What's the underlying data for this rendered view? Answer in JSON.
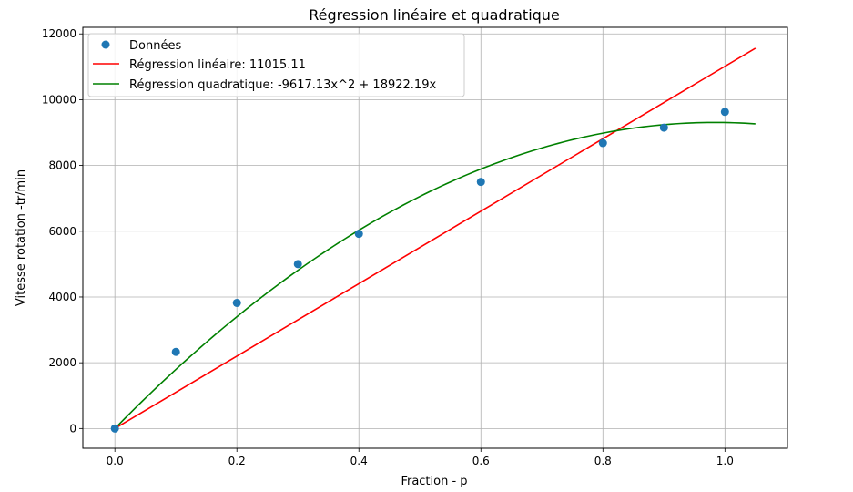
{
  "chart_data": {
    "type": "scatter",
    "title": "Régression linéaire et quadratique",
    "xlabel": "Fraction - p",
    "ylabel": "Vitesse rotation -tr/min",
    "xlim": [
      -0.0525,
      1.1025
    ],
    "ylim": [
      -600,
      12200
    ],
    "x_ticks": [
      0.0,
      0.2,
      0.4,
      0.6,
      0.8,
      1.0
    ],
    "x_tick_labels": [
      "0.0",
      "0.2",
      "0.4",
      "0.6",
      "0.8",
      "1.0"
    ],
    "y_ticks": [
      0,
      2000,
      4000,
      6000,
      8000,
      10000,
      12000
    ],
    "y_tick_labels": [
      "0",
      "2000",
      "4000",
      "6000",
      "8000",
      "10000",
      "12000"
    ],
    "grid": true,
    "legend_position": "top-left",
    "points": {
      "name": "Données",
      "color": "#1f77b4",
      "x": [
        0.0,
        0.1,
        0.2,
        0.3,
        0.4,
        0.6,
        0.8,
        0.9,
        1.0
      ],
      "y": [
        0,
        2330,
        3820,
        5000,
        5920,
        7500,
        8680,
        9150,
        9630
      ]
    },
    "linear_fit": {
      "name": "Régression linéaire: 11015.11",
      "color": "#ff0000",
      "slope": 11015.11,
      "x_range": [
        0.0,
        1.05
      ]
    },
    "quadratic_fit": {
      "name": "Régression quadratique: -9617.13x^2 + 18922.19x",
      "color": "#008000",
      "a": -9617.13,
      "b": 18922.19,
      "x_range": [
        0.0,
        1.05
      ]
    }
  }
}
